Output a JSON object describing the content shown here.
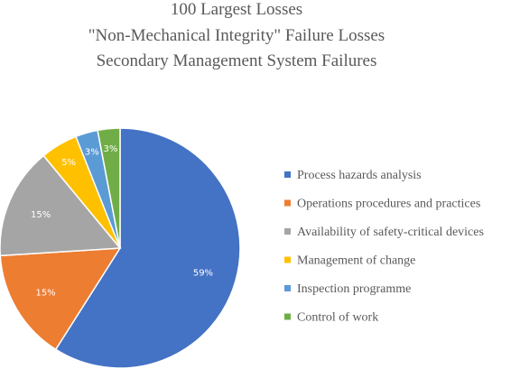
{
  "chart_data": {
    "type": "pie",
    "title": [
      "100 Largest Losses",
      "\"Non-Mechanical Integrity\" Failure Losses",
      "Secondary Management System Failures"
    ],
    "legend_position": "right",
    "slices": [
      {
        "label": "Process hazards analysis",
        "value": 59,
        "display": "59%",
        "color": "#4472C4"
      },
      {
        "label": "Operations procedures and practices",
        "value": 15,
        "display": "15%",
        "color": "#ED7D31"
      },
      {
        "label": "Availability of safety-critical devices",
        "value": 15,
        "display": "15%",
        "color": "#A5A5A5"
      },
      {
        "label": "Management of change",
        "value": 5,
        "display": "5%",
        "color": "#FFC000"
      },
      {
        "label": "Inspection programme",
        "value": 3,
        "display": "3%",
        "color": "#5B9BD5"
      },
      {
        "label": "Control of work",
        "value": 3,
        "display": "3%",
        "color": "#70AD47"
      }
    ]
  }
}
